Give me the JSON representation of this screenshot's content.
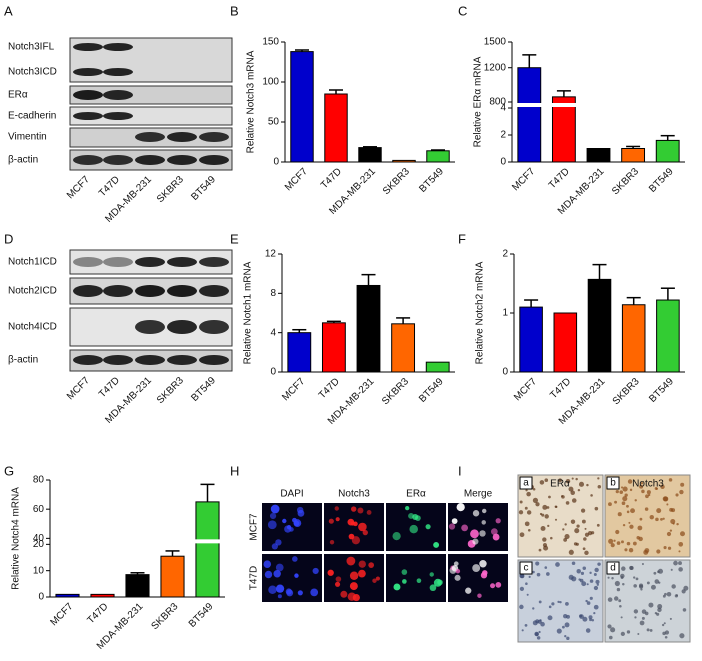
{
  "panel_labels": [
    "A",
    "B",
    "C",
    "D",
    "E",
    "F",
    "G",
    "H",
    "I"
  ],
  "blot_a": {
    "rows": [
      "Notch3IFL",
      "Notch3ICD",
      "ERα",
      "E-cadherin",
      "Vimentin",
      "β-actin"
    ],
    "lanes": [
      "MCF7",
      "T47D",
      "MDA-MB-231",
      "SKBR3",
      "BT549"
    ]
  },
  "blot_d": {
    "rows": [
      "Notch1ICD",
      "Notch2ICD",
      "Notch4ICD",
      "β-actin"
    ],
    "lanes": [
      "MCF7",
      "T47D",
      "MDA-MB-231",
      "SKBR3",
      "BT549"
    ]
  },
  "chart_data": [
    {
      "type": "bar",
      "y_label": "Relative Notch3 mRNA",
      "categories": [
        "MCF7",
        "T47D",
        "MDA-MB-231",
        "SKBR3",
        "BT549"
      ],
      "values": [
        138,
        85,
        18,
        2,
        14
      ],
      "errors": [
        2,
        5,
        1,
        0,
        1
      ],
      "colors": [
        "#0000cc",
        "#ff0000",
        "#000000",
        "#ff6600",
        "#33cc33"
      ],
      "ylim": [
        0,
        150
      ],
      "yticks": [
        0,
        50,
        100,
        150
      ]
    },
    {
      "type": "bar",
      "y_label": "Relative ERα mRNA",
      "categories": [
        "MCF7",
        "T47D",
        "MDA-MB-231",
        "SKBR3",
        "BT549"
      ],
      "values": [
        1200,
        860,
        1,
        1,
        1.6
      ],
      "errors": [
        150,
        70,
        0,
        0.15,
        0.35
      ],
      "colors": [
        "#0000cc",
        "#ff0000",
        "#000000",
        "#ff6600",
        "#33cc33"
      ],
      "ylim": [
        0,
        1500
      ],
      "ybreak": [
        4,
        800
      ],
      "yticks": [
        0,
        2,
        4,
        800,
        1200,
        1500
      ]
    },
    {
      "type": "bar",
      "y_label": "Relative Notch1 mRNA",
      "categories": [
        "MCF7",
        "T47D",
        "MDA-MB-231",
        "SKBR3",
        "BT549"
      ],
      "values": [
        4,
        5,
        8.8,
        4.9,
        1
      ],
      "errors": [
        0.3,
        0.15,
        1.1,
        0.6,
        0
      ],
      "colors": [
        "#0000cc",
        "#ff0000",
        "#000000",
        "#ff6600",
        "#33cc33"
      ],
      "ylim": [
        0,
        12
      ],
      "yticks": [
        0,
        4,
        8,
        12
      ]
    },
    {
      "type": "bar",
      "y_label": "Relative Notch2 mRNA",
      "categories": [
        "MCF7",
        "T47D",
        "MDA-MB-231",
        "SKBR3",
        "BT549"
      ],
      "values": [
        1.1,
        1,
        1.57,
        1.14,
        1.22
      ],
      "errors": [
        0.12,
        0,
        0.25,
        0.12,
        0.2
      ],
      "colors": [
        "#0000cc",
        "#ff0000",
        "#000000",
        "#ff6600",
        "#33cc33"
      ],
      "ylim": [
        0,
        2
      ],
      "yticks": [
        0,
        1,
        2
      ]
    },
    {
      "type": "bar",
      "y_label": "Relative Notch4 mRNA",
      "categories": [
        "MCF7",
        "T47D",
        "MDA-MB-231",
        "SKBR3",
        "BT549"
      ],
      "values": [
        1,
        1,
        8.5,
        15.5,
        65
      ],
      "errors": [
        0,
        0,
        0.7,
        2,
        12
      ],
      "colors": [
        "#0000cc",
        "#ff0000",
        "#000000",
        "#ff6600",
        "#33cc33"
      ],
      "ylim": [
        0,
        80
      ],
      "ybreak": [
        20,
        40
      ],
      "yticks": [
        0,
        10,
        20,
        40,
        60,
        80
      ]
    }
  ],
  "if_h": {
    "columns": [
      "DAPI",
      "Notch3",
      "ERα",
      "Merge"
    ],
    "rows": [
      "MCF7",
      "T47D"
    ]
  },
  "ihc_i": {
    "columns": [
      "ERα",
      "Notch3"
    ],
    "tiles": [
      "a",
      "b",
      "c",
      "d"
    ]
  }
}
